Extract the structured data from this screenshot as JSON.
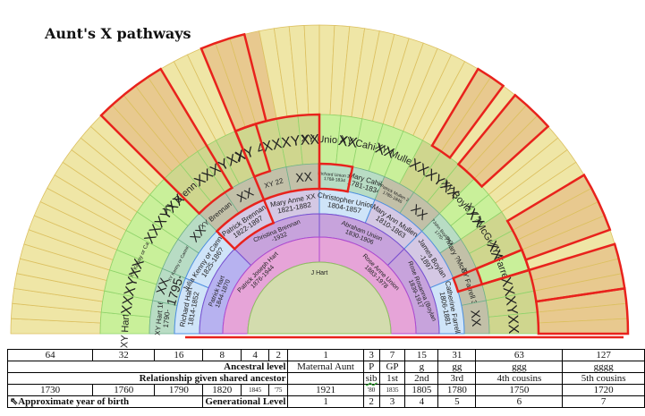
{
  "title": "Aunt's X pathways",
  "colors": {
    "outer_ring": "#efe6a6",
    "outer_highlight": "#e8c98f",
    "ring5_green": "#c9f09a",
    "ring5_olive": "#cfd68e",
    "ring4_teal": "#b8dcc4",
    "ring4_gray": "#c2c0a8",
    "ring3_blue": "#cfe4f8",
    "ring3_lavender": "#d4c8e4",
    "ring2_purple": "#c7a3dc",
    "ring2_violet": "#b7b2f0",
    "ring1_pink": "#e6a4d8",
    "center": "#d3dcae",
    "highlight_border": "#e8221c"
  },
  "fan_chart": {
    "center": {
      "label": "J Hart"
    },
    "ring1": [
      {
        "label": "Patrick Joseph Hart",
        "dates": "1876-1944"
      },
      {
        "label": "Rose Anne Union",
        "dates": "1883-1978"
      }
    ],
    "ring2": [
      {
        "label": "Patrick Hart",
        "dates": "1844-1870"
      },
      {
        "label": "Christina Brennan",
        "dates": "-1932"
      },
      {
        "label": "Abraham Union",
        "dates": "1830-1906"
      },
      {
        "label": "Rose Rosanna (Boylan",
        "dates": "1839-1917"
      }
    ],
    "ring3": [
      {
        "label": "Richard Hart",
        "dates": "1814-1852"
      },
      {
        "label": "Julia Kenny or Canning?",
        "dates": "1825-186?"
      },
      {
        "label": "Patrick Brennan",
        "dates": "1822-1897"
      },
      {
        "label": "Mary Anne XX",
        "dates": "1821-1882"
      },
      {
        "label": "Christopher Union",
        "dates": "1804-1857"
      },
      {
        "label": "Mary Ann Mullen",
        "dates": "1810-1863"
      },
      {
        "label": "James Boylan",
        "dates": "-1897"
      },
      {
        "label": "Catherine Farrell",
        "dates": "1806-1881"
      }
    ],
    "ring4": [
      {
        "label": "XY Hart 16",
        "dates": "1790-"
      },
      {
        "label": "XX",
        "dates": "1795-"
      },
      {
        "label": "XY Kenny or Canning 18",
        "dates": ""
      },
      {
        "label": "XX",
        "dates": ""
      },
      {
        "label": "XY Brennan 20",
        "dates": ""
      },
      {
        "label": "XX",
        "dates": ""
      },
      {
        "label": "XY 22",
        "dates": ""
      },
      {
        "label": "XX",
        "dates": ""
      },
      {
        "label": "Richard Union 24",
        "dates": "1768-1834"
      },
      {
        "label": "Mary Cahill",
        "dates": "1781-1834"
      },
      {
        "label": "?Patrick Mullen 26",
        "dates": "1786-1846"
      },
      {
        "label": "XX",
        "dates": ""
      },
      {
        "label": "?John Boylan 28",
        "dates": "1770-"
      },
      {
        "label": "?Mary ?McGeer",
        "dates": ""
      },
      {
        "label": "XY Farrell 30",
        "dates": ""
      },
      {
        "label": "XX",
        "dates": ""
      }
    ],
    "ring5": [
      "XY Hart 32",
      "XX",
      "XY",
      "XX",
      "XY Kenny or Canning 36",
      "XX",
      "XY",
      "XX",
      "XY Brennan 40",
      "XX",
      "XY",
      "XX",
      "XY 44",
      "XX",
      "XY",
      "XX",
      "XY Union 48",
      "XX",
      "XY Cahill 50",
      "XX",
      "XY Mullen 52",
      "XX",
      "XY",
      "XX",
      "XY Boylan 56",
      "XX",
      "XY ?McGeer 58",
      "XX",
      "XY Farrell 60",
      "XX",
      "XY",
      "XX"
    ]
  },
  "table": {
    "row_ancestor_counts": [
      "64",
      "32",
      "16",
      "8",
      "4",
      "2",
      "1",
      "3",
      "7",
      "15",
      "31",
      "63",
      "127"
    ],
    "row_ancestral_level": {
      "label": "Ancestral level",
      "values": [
        "Maternal Aunt",
        "P",
        "GP",
        "g",
        "gg",
        "ggg",
        "gggg"
      ]
    },
    "row_relationship": {
      "label": "Relationship given shared ancestor",
      "values": [
        "",
        "sib",
        "1st",
        "2nd",
        "3rd",
        "4th cousins",
        "5th cousins"
      ]
    },
    "row_years": [
      "1730",
      "1760",
      "1790",
      "1820",
      "1845",
      "'75",
      "1921",
      "'80",
      "1835",
      "1805",
      "1780",
      "1750",
      "1720"
    ],
    "row_generation": {
      "left_label": "Approximate year of birth",
      "label": "Generational Level",
      "values": [
        "1",
        "2",
        "3",
        "4",
        "5",
        "6",
        "7"
      ]
    }
  }
}
